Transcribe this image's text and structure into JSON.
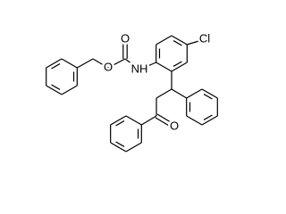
{
  "labels": [
    "Cl",
    "NH",
    "O",
    "O",
    "O"
  ]
}
